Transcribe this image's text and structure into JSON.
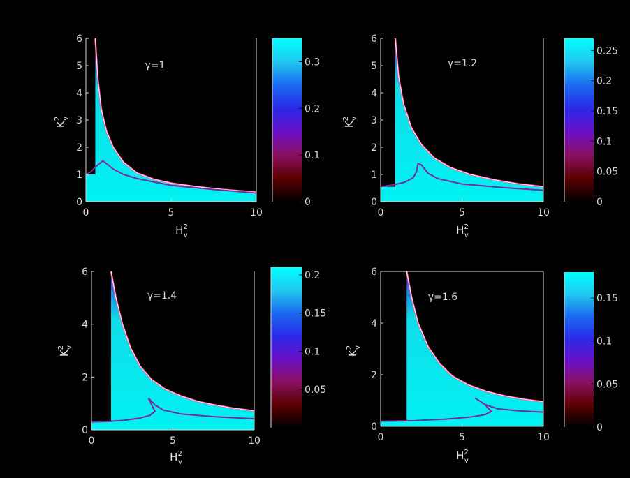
{
  "figure": {
    "background": "#000000",
    "colormap": [
      "#000000",
      "#5a0000",
      "#8a1060",
      "#6a10c8",
      "#2a2ae8",
      "#1a6af0",
      "#22c8f0",
      "#00ffff"
    ]
  },
  "chart_data": [
    {
      "type": "heatmap",
      "panel": "top-left",
      "annotation": "γ=1",
      "gamma": 1,
      "xlabel": "H",
      "xlabel_sup": "2",
      "xlabel_sub": "v",
      "ylabel": "K",
      "ylabel_sup": "2",
      "ylabel_sub": "v",
      "xlim": [
        0,
        10
      ],
      "ylim": [
        0,
        6
      ],
      "x_ticks": [
        "0",
        "5",
        "10"
      ],
      "y_ticks": [
        "0",
        "1",
        "2",
        "3",
        "4",
        "5",
        "6"
      ],
      "frame": "open",
      "upper_boundary": [
        [
          0.55,
          6.0
        ],
        [
          0.7,
          4.5
        ],
        [
          0.9,
          3.4
        ],
        [
          1.2,
          2.6
        ],
        [
          1.6,
          2.0
        ],
        [
          2.2,
          1.45
        ],
        [
          3.0,
          1.05
        ],
        [
          4.0,
          0.82
        ],
        [
          5.0,
          0.68
        ],
        [
          6.5,
          0.55
        ],
        [
          8.0,
          0.45
        ],
        [
          10.0,
          0.35
        ]
      ],
      "lower_boundary": [
        [
          0.0,
          1.0
        ],
        [
          0.3,
          1.1
        ],
        [
          0.6,
          1.3
        ],
        [
          0.9,
          1.45
        ],
        [
          1.0,
          1.5
        ],
        [
          1.2,
          1.4
        ],
        [
          1.6,
          1.2
        ],
        [
          2.2,
          1.0
        ],
        [
          3.0,
          0.85
        ],
        [
          5.0,
          0.6
        ],
        [
          7.5,
          0.45
        ],
        [
          10.0,
          0.32
        ]
      ],
      "colorbar": {
        "ticks": [
          "0.3",
          "0.2",
          "0.1",
          "0"
        ],
        "tick_values": [
          0.3,
          0.2,
          0.1,
          0
        ],
        "range": [
          0,
          0.35
        ]
      }
    },
    {
      "type": "heatmap",
      "panel": "top-right",
      "annotation": "γ=1.2",
      "gamma": 1.2,
      "xlabel": "H",
      "xlabel_sup": "2",
      "xlabel_sub": "v",
      "ylabel": "K",
      "ylabel_sup": "2",
      "ylabel_sub": "v",
      "xlim": [
        0,
        10
      ],
      "ylim": [
        0,
        6
      ],
      "x_ticks": [
        "0",
        "5",
        "10"
      ],
      "y_ticks": [
        "0",
        "1",
        "2",
        "3",
        "4",
        "5",
        "6"
      ],
      "frame": "open",
      "upper_boundary": [
        [
          0.9,
          6.0
        ],
        [
          1.1,
          4.6
        ],
        [
          1.4,
          3.6
        ],
        [
          1.9,
          2.7
        ],
        [
          2.5,
          2.1
        ],
        [
          3.3,
          1.6
        ],
        [
          4.3,
          1.25
        ],
        [
          5.5,
          1.0
        ],
        [
          7.0,
          0.8
        ],
        [
          8.5,
          0.65
        ],
        [
          10.0,
          0.55
        ]
      ],
      "lower_boundary": [
        [
          0.0,
          0.55
        ],
        [
          0.8,
          0.62
        ],
        [
          1.5,
          0.72
        ],
        [
          2.0,
          0.88
        ],
        [
          2.2,
          1.1
        ],
        [
          2.3,
          1.4
        ],
        [
          2.5,
          1.35
        ],
        [
          2.9,
          1.05
        ],
        [
          3.5,
          0.85
        ],
        [
          5.0,
          0.65
        ],
        [
          7.5,
          0.52
        ],
        [
          10.0,
          0.42
        ]
      ],
      "colorbar": {
        "ticks": [
          "0.25",
          "0.2",
          "0.15",
          "0.1",
          "0.05",
          "0"
        ],
        "tick_values": [
          0.25,
          0.2,
          0.15,
          0.1,
          0.05,
          0
        ],
        "range": [
          0,
          0.27
        ]
      }
    },
    {
      "type": "heatmap",
      "panel": "bottom-left",
      "annotation": "γ=1.4",
      "gamma": 1.4,
      "xlabel": "H",
      "xlabel_sup": "2",
      "xlabel_sub": "v",
      "ylabel": "K",
      "ylabel_sup": "2",
      "ylabel_sub": "v",
      "xlim": [
        0,
        10
      ],
      "ylim": [
        0,
        6
      ],
      "x_ticks": [
        "0",
        "5",
        "10"
      ],
      "y_ticks": [
        "0",
        "2",
        "4",
        "6"
      ],
      "frame": "open",
      "upper_boundary": [
        [
          1.2,
          6.0
        ],
        [
          1.5,
          5.0
        ],
        [
          1.9,
          4.0
        ],
        [
          2.4,
          3.1
        ],
        [
          3.0,
          2.4
        ],
        [
          3.7,
          1.9
        ],
        [
          4.5,
          1.55
        ],
        [
          5.5,
          1.28
        ],
        [
          6.5,
          1.08
        ],
        [
          7.5,
          0.95
        ],
        [
          8.7,
          0.82
        ],
        [
          10.0,
          0.72
        ]
      ],
      "lower_boundary": [
        [
          0.0,
          0.3
        ],
        [
          1.0,
          0.32
        ],
        [
          2.0,
          0.36
        ],
        [
          3.0,
          0.45
        ],
        [
          3.6,
          0.55
        ],
        [
          3.9,
          0.7
        ],
        [
          3.7,
          0.95
        ],
        [
          3.5,
          1.2
        ],
        [
          3.9,
          0.95
        ],
        [
          4.4,
          0.75
        ],
        [
          5.5,
          0.6
        ],
        [
          7.5,
          0.5
        ],
        [
          10.0,
          0.42
        ]
      ],
      "colorbar": {
        "ticks": [
          "0.2",
          "0.15",
          "0.1",
          "0.05"
        ],
        "tick_values": [
          0.2,
          0.15,
          0.1,
          0.05
        ],
        "range": [
          0,
          0.21
        ]
      }
    },
    {
      "type": "heatmap",
      "panel": "bottom-right",
      "annotation": "γ=1.6",
      "gamma": 1.6,
      "xlabel": "H",
      "xlabel_sup": "2",
      "xlabel_sub": "v",
      "ylabel": "K",
      "ylabel_sup": "2",
      "ylabel_sub": "v",
      "xlim": [
        0,
        10
      ],
      "ylim": [
        0,
        6
      ],
      "x_ticks": [
        "0",
        "5",
        "10"
      ],
      "y_ticks": [
        "0",
        "2",
        "4",
        "6"
      ],
      "frame": "box",
      "upper_boundary": [
        [
          1.6,
          6.0
        ],
        [
          1.9,
          5.0
        ],
        [
          2.3,
          4.0
        ],
        [
          2.9,
          3.1
        ],
        [
          3.6,
          2.45
        ],
        [
          4.4,
          1.95
        ],
        [
          5.4,
          1.6
        ],
        [
          6.5,
          1.35
        ],
        [
          7.6,
          1.18
        ],
        [
          8.8,
          1.05
        ],
        [
          10.0,
          0.95
        ]
      ],
      "lower_boundary": [
        [
          0.0,
          0.2
        ],
        [
          2.0,
          0.22
        ],
        [
          4.0,
          0.28
        ],
        [
          5.5,
          0.36
        ],
        [
          6.4,
          0.45
        ],
        [
          6.8,
          0.58
        ],
        [
          6.4,
          0.85
        ],
        [
          5.8,
          1.1
        ],
        [
          6.4,
          0.85
        ],
        [
          7.2,
          0.68
        ],
        [
          8.5,
          0.6
        ],
        [
          10.0,
          0.55
        ]
      ],
      "colorbar": {
        "ticks": [
          "0.15",
          "0.1",
          "0.05",
          "0"
        ],
        "tick_values": [
          0.15,
          0.1,
          0.05,
          0
        ],
        "range": [
          0,
          0.18
        ]
      }
    }
  ]
}
